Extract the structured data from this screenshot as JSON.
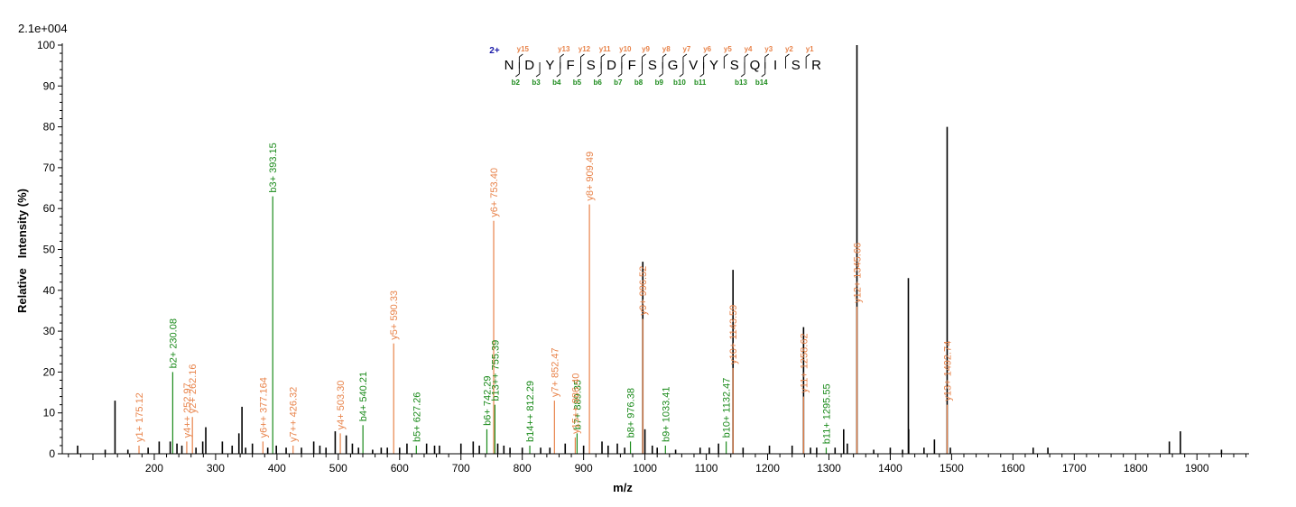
{
  "scale_label": "2.1e+004",
  "chart_data": {
    "type": "bar",
    "title": "",
    "xlabel": "m/z",
    "ylabel": "Relative   Intensity (%)",
    "xlim": [
      50,
      1985
    ],
    "ylim": [
      0,
      100
    ],
    "x_ticks": [
      200,
      300,
      400,
      500,
      600,
      700,
      800,
      900,
      1000,
      1100,
      1200,
      1300,
      1400,
      1500,
      1600,
      1700,
      1800,
      1900
    ],
    "y_ticks": [
      0,
      10,
      20,
      30,
      40,
      50,
      60,
      70,
      80,
      90,
      100
    ],
    "colors": {
      "unassigned": "#000000",
      "y_ion": "#e8834a",
      "b_ion": "#1a8a1a",
      "charge": "#1a1aa8"
    },
    "peaks": [
      {
        "mz": 1345.66,
        "intensity": 100,
        "color": "black",
        "label": ""
      },
      {
        "mz": 1345.66,
        "intensity": 36,
        "color": "y",
        "label": "y12+ 1345.66"
      },
      {
        "mz": 1492.74,
        "intensity": 80,
        "color": "black",
        "label": ""
      },
      {
        "mz": 1492.74,
        "intensity": 12,
        "color": "y",
        "label": "y13+ 1492.74"
      },
      {
        "mz": 393.15,
        "intensity": 63,
        "color": "b",
        "label": "b3+ 393.15"
      },
      {
        "mz": 909.49,
        "intensity": 61,
        "color": "y",
        "label": "y8+ 909.49"
      },
      {
        "mz": 753.4,
        "intensity": 57,
        "color": "y",
        "label": "y6+ 753.40"
      },
      {
        "mz": 996.52,
        "intensity": 47,
        "color": "black",
        "label": ""
      },
      {
        "mz": 996.52,
        "intensity": 33,
        "color": "y",
        "label": "y9+ 996.52"
      },
      {
        "mz": 1143.59,
        "intensity": 45,
        "color": "black",
        "label": ""
      },
      {
        "mz": 1143.59,
        "intensity": 21,
        "color": "y",
        "label": "y10+ 1143.59"
      },
      {
        "mz": 1429.5,
        "intensity": 43,
        "color": "black",
        "label": ""
      },
      {
        "mz": 1258.62,
        "intensity": 31,
        "color": "black",
        "label": ""
      },
      {
        "mz": 1258.62,
        "intensity": 14,
        "color": "y",
        "label": "y11+ 1258.62"
      },
      {
        "mz": 590.33,
        "intensity": 27,
        "color": "y",
        "label": "y5+ 590.33"
      },
      {
        "mz": 230.08,
        "intensity": 20,
        "color": "b",
        "label": "b2+ 230.08"
      },
      {
        "mz": 889.35,
        "intensity": 5,
        "color": "b",
        "label": "b7+ 889.35"
      },
      {
        "mz": 852.47,
        "intensity": 13,
        "color": "y",
        "label": "y7+ 852.47"
      },
      {
        "mz": 755.39,
        "intensity": 12,
        "color": "b",
        "label": "b13++ 755.39"
      },
      {
        "mz": 742.29,
        "intensity": 6,
        "color": "b",
        "label": "b6+ 742.29"
      },
      {
        "mz": 886.4,
        "intensity": 4,
        "color": "y",
        "label": "y15++ 886.40"
      },
      {
        "mz": 262.16,
        "intensity": 9,
        "color": "y",
        "label": "y2+ 262.16"
      },
      {
        "mz": 252.97,
        "intensity": 3,
        "color": "y",
        "label": "y4++ 252.97"
      },
      {
        "mz": 540.21,
        "intensity": 7,
        "color": "b",
        "label": "b4+ 540.21"
      },
      {
        "mz": 503.3,
        "intensity": 5,
        "color": "y",
        "label": "y4+ 503.30"
      },
      {
        "mz": 627.26,
        "intensity": 2,
        "color": "b",
        "label": "b5+ 627.26"
      },
      {
        "mz": 812.29,
        "intensity": 2,
        "color": "b",
        "label": "b14++ 812.29"
      },
      {
        "mz": 976.38,
        "intensity": 3,
        "color": "b",
        "label": "b8+ 976.38"
      },
      {
        "mz": 1033.41,
        "intensity": 2,
        "color": "b",
        "label": "b9+ 1033.41"
      },
      {
        "mz": 1132.47,
        "intensity": 3,
        "color": "b",
        "label": "b10+ 1132.47"
      },
      {
        "mz": 1295.55,
        "intensity": 1.5,
        "color": "b",
        "label": "b11+ 1295.55"
      },
      {
        "mz": 377.164,
        "intensity": 3,
        "color": "y",
        "label": "y6++ 377.164"
      },
      {
        "mz": 426.32,
        "intensity": 2,
        "color": "y",
        "label": "y7++ 426.32"
      },
      {
        "mz": 175.12,
        "intensity": 2,
        "color": "y",
        "label": "y1+ 175.12"
      },
      {
        "mz": 136,
        "intensity": 13,
        "color": "black",
        "label": ""
      },
      {
        "mz": 343,
        "intensity": 11.5,
        "color": "black",
        "label": ""
      },
      {
        "mz": 1873,
        "intensity": 5.5,
        "color": "black",
        "label": ""
      },
      {
        "mz": 1855,
        "intensity": 3,
        "color": "black",
        "label": ""
      },
      {
        "mz": 1324,
        "intensity": 6,
        "color": "black",
        "label": ""
      },
      {
        "mz": 1430,
        "intensity": 6,
        "color": "black",
        "label": ""
      },
      {
        "mz": 284,
        "intensity": 6.5,
        "color": "black",
        "label": ""
      },
      {
        "mz": 495,
        "intensity": 5.5,
        "color": "black",
        "label": ""
      },
      {
        "mz": 513,
        "intensity": 4.5,
        "color": "black",
        "label": ""
      },
      {
        "mz": 1000,
        "intensity": 6,
        "color": "black",
        "label": ""
      },
      {
        "mz": 1472,
        "intensity": 3.5,
        "color": "black",
        "label": ""
      },
      {
        "mz": 338,
        "intensity": 5,
        "color": "black",
        "label": ""
      },
      {
        "mz": 279,
        "intensity": 3,
        "color": "black",
        "label": ""
      },
      {
        "mz": 208,
        "intensity": 3,
        "color": "black",
        "label": ""
      },
      {
        "mz": 226,
        "intensity": 3,
        "color": "black",
        "label": ""
      },
      {
        "mz": 311,
        "intensity": 3,
        "color": "black",
        "label": ""
      },
      {
        "mz": 360,
        "intensity": 2.5,
        "color": "black",
        "label": ""
      },
      {
        "mz": 399,
        "intensity": 2,
        "color": "black",
        "label": ""
      },
      {
        "mz": 460,
        "intensity": 3,
        "color": "black",
        "label": ""
      },
      {
        "mz": 523,
        "intensity": 2.5,
        "color": "black",
        "label": ""
      },
      {
        "mz": 612,
        "intensity": 2.5,
        "color": "black",
        "label": ""
      },
      {
        "mz": 644,
        "intensity": 2.5,
        "color": "black",
        "label": ""
      },
      {
        "mz": 700,
        "intensity": 2.5,
        "color": "black",
        "label": ""
      },
      {
        "mz": 720,
        "intensity": 3,
        "color": "black",
        "label": ""
      },
      {
        "mz": 760,
        "intensity": 2.5,
        "color": "black",
        "label": ""
      },
      {
        "mz": 800,
        "intensity": 1.5,
        "color": "black",
        "label": ""
      },
      {
        "mz": 870,
        "intensity": 2.5,
        "color": "black",
        "label": ""
      },
      {
        "mz": 930,
        "intensity": 3,
        "color": "black",
        "label": ""
      },
      {
        "mz": 955,
        "intensity": 2.5,
        "color": "black",
        "label": ""
      },
      {
        "mz": 1012,
        "intensity": 2,
        "color": "black",
        "label": ""
      },
      {
        "mz": 1090,
        "intensity": 1.5,
        "color": "black",
        "label": ""
      },
      {
        "mz": 1120,
        "intensity": 2.5,
        "color": "black",
        "label": ""
      },
      {
        "mz": 1203,
        "intensity": 2,
        "color": "black",
        "label": ""
      },
      {
        "mz": 1240,
        "intensity": 2,
        "color": "black",
        "label": ""
      },
      {
        "mz": 1310,
        "intensity": 1.5,
        "color": "black",
        "label": ""
      },
      {
        "mz": 1330,
        "intensity": 2.5,
        "color": "black",
        "label": ""
      },
      {
        "mz": 1400,
        "intensity": 1.5,
        "color": "black",
        "label": ""
      },
      {
        "mz": 1455,
        "intensity": 1.5,
        "color": "black",
        "label": ""
      },
      {
        "mz": 1498,
        "intensity": 1.5,
        "color": "black",
        "label": ""
      },
      {
        "mz": 1633,
        "intensity": 1.5,
        "color": "black",
        "label": ""
      },
      {
        "mz": 1657,
        "intensity": 1.5,
        "color": "black",
        "label": ""
      },
      {
        "mz": 1940,
        "intensity": 1,
        "color": "black",
        "label": ""
      },
      {
        "mz": 75,
        "intensity": 2,
        "color": "black",
        "label": ""
      },
      {
        "mz": 120,
        "intensity": 1,
        "color": "black",
        "label": ""
      },
      {
        "mz": 157,
        "intensity": 1,
        "color": "black",
        "label": ""
      },
      {
        "mz": 190,
        "intensity": 1.5,
        "color": "black",
        "label": ""
      },
      {
        "mz": 237,
        "intensity": 2.5,
        "color": "black",
        "label": ""
      },
      {
        "mz": 245,
        "intensity": 2,
        "color": "black",
        "label": ""
      },
      {
        "mz": 268,
        "intensity": 1.5,
        "color": "black",
        "label": ""
      },
      {
        "mz": 327,
        "intensity": 2,
        "color": "black",
        "label": ""
      },
      {
        "mz": 349,
        "intensity": 1.5,
        "color": "black",
        "label": ""
      },
      {
        "mz": 385,
        "intensity": 1.5,
        "color": "black",
        "label": ""
      },
      {
        "mz": 415,
        "intensity": 1.5,
        "color": "black",
        "label": ""
      },
      {
        "mz": 440,
        "intensity": 1.5,
        "color": "black",
        "label": ""
      },
      {
        "mz": 470,
        "intensity": 2,
        "color": "black",
        "label": ""
      },
      {
        "mz": 480,
        "intensity": 1.5,
        "color": "black",
        "label": ""
      },
      {
        "mz": 533,
        "intensity": 1.5,
        "color": "black",
        "label": ""
      },
      {
        "mz": 556,
        "intensity": 1,
        "color": "black",
        "label": ""
      },
      {
        "mz": 570,
        "intensity": 1.5,
        "color": "black",
        "label": ""
      },
      {
        "mz": 580,
        "intensity": 1.5,
        "color": "black",
        "label": ""
      },
      {
        "mz": 600,
        "intensity": 1.5,
        "color": "black",
        "label": ""
      },
      {
        "mz": 657,
        "intensity": 2,
        "color": "black",
        "label": ""
      },
      {
        "mz": 665,
        "intensity": 2,
        "color": "black",
        "label": ""
      },
      {
        "mz": 730,
        "intensity": 2,
        "color": "black",
        "label": ""
      },
      {
        "mz": 770,
        "intensity": 2,
        "color": "black",
        "label": ""
      },
      {
        "mz": 780,
        "intensity": 1.5,
        "color": "black",
        "label": ""
      },
      {
        "mz": 830,
        "intensity": 1.5,
        "color": "black",
        "label": ""
      },
      {
        "mz": 845,
        "intensity": 1.5,
        "color": "black",
        "label": ""
      },
      {
        "mz": 900,
        "intensity": 2,
        "color": "black",
        "label": ""
      },
      {
        "mz": 940,
        "intensity": 2,
        "color": "black",
        "label": ""
      },
      {
        "mz": 967,
        "intensity": 1.5,
        "color": "black",
        "label": ""
      },
      {
        "mz": 1020,
        "intensity": 1.5,
        "color": "black",
        "label": ""
      },
      {
        "mz": 1050,
        "intensity": 1,
        "color": "black",
        "label": ""
      },
      {
        "mz": 1105,
        "intensity": 1.5,
        "color": "black",
        "label": ""
      },
      {
        "mz": 1160,
        "intensity": 1.5,
        "color": "black",
        "label": ""
      },
      {
        "mz": 1270,
        "intensity": 1.5,
        "color": "black",
        "label": ""
      },
      {
        "mz": 1280,
        "intensity": 1.5,
        "color": "black",
        "label": ""
      },
      {
        "mz": 1373,
        "intensity": 1,
        "color": "black",
        "label": ""
      },
      {
        "mz": 1420,
        "intensity": 1,
        "color": "black",
        "label": ""
      }
    ],
    "sequence": {
      "charge": "2+",
      "residues": [
        "N",
        "D",
        "Y",
        "F",
        "S",
        "D",
        "F",
        "S",
        "G",
        "V",
        "Y",
        "S",
        "Q",
        "I",
        "S",
        "R"
      ],
      "y_ions": [
        "",
        "y15",
        "",
        "y13",
        "y12",
        "y11",
        "y10",
        "y9",
        "y8",
        "y7",
        "y6",
        "y5",
        "y4",
        "y3",
        "y2",
        "y1"
      ],
      "b_ions": [
        "",
        "b2",
        "b3",
        "b4",
        "b5",
        "b6",
        "b7",
        "b8",
        "b9",
        "b10",
        "b11",
        "",
        "b13",
        "b14",
        "",
        ""
      ]
    }
  }
}
